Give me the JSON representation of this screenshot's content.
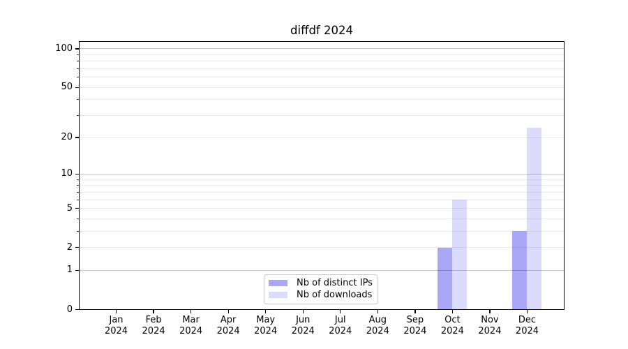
{
  "chart_data": {
    "type": "bar",
    "title": "diffdf 2024",
    "categories": [
      "Jan 2024",
      "Feb 2024",
      "Mar 2024",
      "Apr 2024",
      "May 2024",
      "Jun 2024",
      "Jul 2024",
      "Aug 2024",
      "Sep 2024",
      "Oct 2024",
      "Nov 2024",
      "Dec 2024"
    ],
    "series": [
      {
        "name": "Nb of distinct IPs",
        "color": "rgba(0,0,230,0.34)",
        "values": [
          0,
          0,
          0,
          0,
          0,
          0,
          0,
          0,
          0,
          2,
          0,
          3
        ]
      },
      {
        "name": "Nb of downloads",
        "color": "rgba(0,0,230,0.14)",
        "values": [
          0,
          0,
          0,
          0,
          0,
          0,
          0,
          0,
          0,
          6,
          0,
          24
        ]
      }
    ],
    "yscale": "log1p",
    "ylim": [
      0,
      101
    ],
    "yticks_labeled": [
      0,
      1,
      2,
      5,
      10,
      20,
      50,
      100
    ],
    "yticks_minor": [
      3,
      4,
      6,
      7,
      8,
      9,
      30,
      40,
      60,
      70,
      80,
      90
    ],
    "gridlines_major": [
      1,
      10,
      100
    ],
    "gridlines_minor": [
      2,
      3,
      4,
      5,
      6,
      7,
      8,
      9,
      20,
      30,
      40,
      50,
      60,
      70,
      80,
      90
    ],
    "grid_major_color": "#c6c6c6",
    "grid_minor_color": "#ebebeb",
    "axis_color": "#000000",
    "legend_position": "lower center",
    "grid": "on"
  }
}
